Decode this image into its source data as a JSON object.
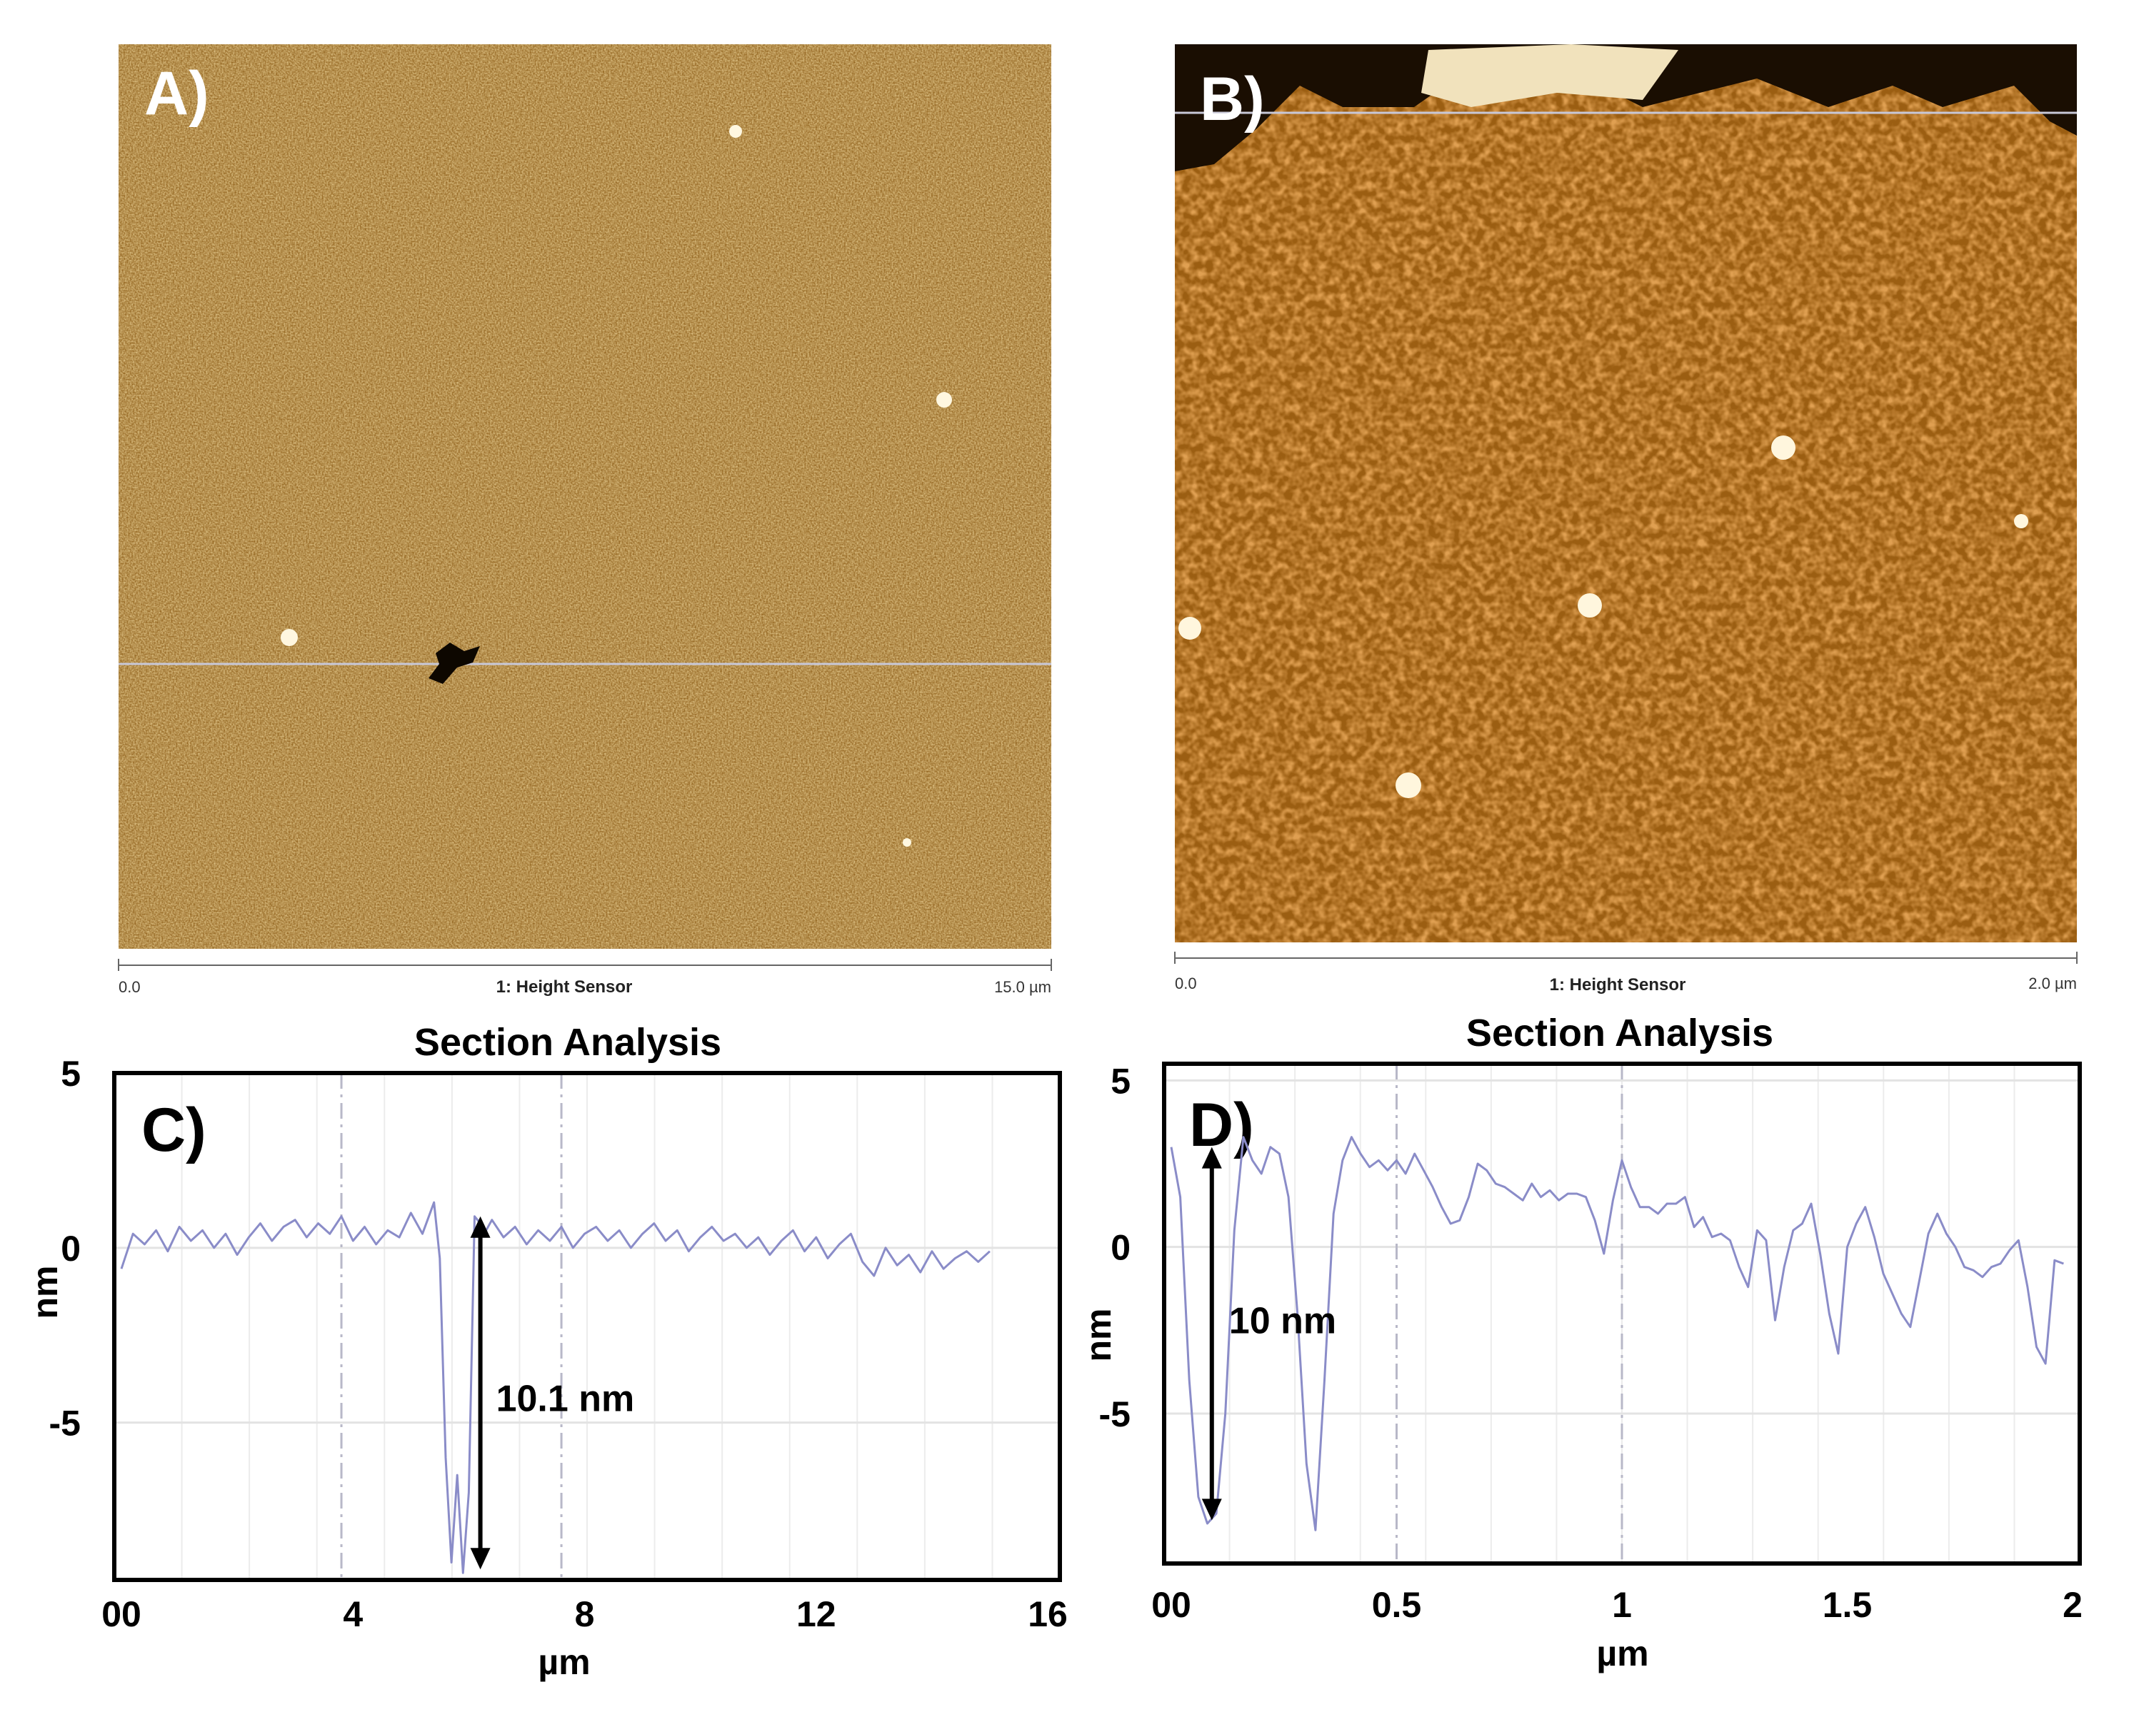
{
  "panels": {
    "A": {
      "label": "A)",
      "sensor_label": "1: Height Sensor",
      "scale_start": "0.0",
      "scale_end": "15.0 µm"
    },
    "B": {
      "label": "B)",
      "sensor_label": "1: Height Sensor",
      "scale_start": "0.0",
      "scale_end": "2.0 µm"
    }
  },
  "colors": {
    "afm_dark": "#5a3a08",
    "afm_mid": "#a8721e",
    "afm_light": "#f3dca2",
    "trace": "#8a8cc8",
    "arrow": "#000000",
    "grid": "#e0e0e0",
    "frame": "#000000"
  },
  "chart_data": [
    {
      "type": "line",
      "panel_label": "C)",
      "title": "Section Analysis",
      "xlabel": "µm",
      "ylabel": "nm",
      "xlim": [
        0,
        16
      ],
      "ylim": [
        -9.5,
        5
      ],
      "xticks": [
        0,
        4,
        8,
        12,
        16
      ],
      "xtick_labels": [
        "00",
        "4",
        "8",
        "12",
        "16"
      ],
      "yticks": [
        5,
        0,
        -5
      ],
      "ytick_labels": [
        "5",
        "0",
        "-5"
      ],
      "grid": true,
      "series": [
        {
          "x": [
            0,
            0.2,
            0.4,
            0.6,
            0.8,
            1.0,
            1.2,
            1.4,
            1.6,
            1.8,
            2.0,
            2.2,
            2.4,
            2.6,
            2.8,
            3.0,
            3.2,
            3.4,
            3.6,
            3.8,
            4.0,
            4.2,
            4.4,
            4.6,
            4.8,
            5.0,
            5.2,
            5.4,
            5.5,
            5.6,
            5.7,
            5.8,
            5.9,
            6.0,
            6.1,
            6.2,
            6.3,
            6.4,
            6.6,
            6.8,
            7.0,
            7.2,
            7.4,
            7.6,
            7.8,
            8.0,
            8.2,
            8.4,
            8.6,
            8.8,
            9.0,
            9.2,
            9.4,
            9.6,
            9.8,
            10.0,
            10.2,
            10.4,
            10.6,
            10.8,
            11.0,
            11.2,
            11.4,
            11.6,
            11.8,
            12.0,
            12.2,
            12.4,
            12.6,
            12.8,
            13.0,
            13.2,
            13.4,
            13.6,
            13.8,
            14.0,
            14.2,
            14.4,
            14.6,
            14.8,
            15.0
          ],
          "y": [
            -0.6,
            0.4,
            0.1,
            0.5,
            -0.1,
            0.6,
            0.2,
            0.5,
            0.0,
            0.4,
            -0.2,
            0.3,
            0.7,
            0.2,
            0.6,
            0.8,
            0.3,
            0.7,
            0.4,
            0.9,
            0.2,
            0.6,
            0.1,
            0.5,
            0.3,
            1.0,
            0.4,
            1.3,
            -0.3,
            -6.0,
            -9.0,
            -6.5,
            -9.3,
            -7.0,
            0.9,
            0.7,
            0.5,
            0.8,
            0.3,
            0.6,
            0.1,
            0.5,
            0.2,
            0.6,
            0.0,
            0.4,
            0.6,
            0.2,
            0.5,
            0.0,
            0.4,
            0.7,
            0.2,
            0.5,
            -0.1,
            0.3,
            0.6,
            0.2,
            0.4,
            0.0,
            0.3,
            -0.2,
            0.2,
            0.5,
            -0.1,
            0.3,
            -0.3,
            0.1,
            0.4,
            -0.4,
            -0.8,
            0.0,
            -0.5,
            -0.2,
            -0.7,
            -0.1,
            -0.6,
            -0.3,
            -0.1,
            -0.4,
            -0.1
          ]
        }
      ],
      "annotation": {
        "text": "10.1 nm",
        "arrow_x": 6.2,
        "arrow_from": 0.9,
        "arrow_to": -9.2
      }
    },
    {
      "type": "line",
      "panel_label": "D)",
      "title": "Section Analysis",
      "xlabel": "µm",
      "ylabel": "nm",
      "xlim": [
        0,
        2
      ],
      "ylim": [
        -9.5,
        5.5
      ],
      "xticks": [
        0,
        0.5,
        1,
        1.5,
        2
      ],
      "xtick_labels": [
        "00",
        "0.5",
        "1",
        "1.5",
        "2"
      ],
      "yticks": [
        5,
        0,
        -5
      ],
      "ytick_labels": [
        "5",
        "0",
        "-5"
      ],
      "grid": true,
      "series": [
        {
          "x": [
            0,
            0.02,
            0.04,
            0.06,
            0.08,
            0.1,
            0.12,
            0.14,
            0.16,
            0.18,
            0.2,
            0.22,
            0.24,
            0.26,
            0.28,
            0.3,
            0.32,
            0.34,
            0.36,
            0.38,
            0.4,
            0.42,
            0.44,
            0.46,
            0.48,
            0.5,
            0.52,
            0.54,
            0.56,
            0.58,
            0.6,
            0.62,
            0.64,
            0.66,
            0.68,
            0.7,
            0.72,
            0.74,
            0.76,
            0.78,
            0.8,
            0.82,
            0.84,
            0.86,
            0.88,
            0.9,
            0.92,
            0.94,
            0.96,
            0.98,
            1.0,
            1.02,
            1.04,
            1.06,
            1.08,
            1.1,
            1.12,
            1.14,
            1.16,
            1.18,
            1.2,
            1.22,
            1.24,
            1.26,
            1.28,
            1.3,
            1.32,
            1.34,
            1.36,
            1.38,
            1.4,
            1.42,
            1.44,
            1.46,
            1.48,
            1.5,
            1.52,
            1.54,
            1.56,
            1.58,
            1.6,
            1.62,
            1.64,
            1.66,
            1.68,
            1.7,
            1.72,
            1.74,
            1.76,
            1.78,
            1.8,
            1.82,
            1.84,
            1.86,
            1.88,
            1.9,
            1.92,
            1.94,
            1.96,
            1.98
          ],
          "y": [
            3.0,
            1.5,
            -4.0,
            -7.5,
            -8.3,
            -8.0,
            -5.0,
            0.5,
            3.3,
            2.6,
            2.2,
            3.0,
            2.8,
            1.5,
            -2.0,
            -6.5,
            -8.5,
            -4.0,
            1.0,
            2.6,
            3.3,
            2.8,
            2.4,
            2.6,
            2.3,
            2.6,
            2.2,
            2.8,
            2.3,
            1.8,
            1.2,
            0.7,
            0.8,
            1.5,
            2.5,
            2.3,
            1.9,
            1.8,
            1.6,
            1.4,
            1.9,
            1.5,
            1.7,
            1.4,
            1.6,
            1.6,
            1.5,
            0.8,
            -0.2,
            1.4,
            2.6,
            1.8,
            1.2,
            1.2,
            1.0,
            1.3,
            1.3,
            1.5,
            0.6,
            0.9,
            0.3,
            0.4,
            0.2,
            -0.6,
            -1.2,
            0.5,
            0.2,
            -2.2,
            -0.6,
            0.5,
            0.7,
            1.3,
            -0.2,
            -2.0,
            -3.2,
            0.0,
            0.7,
            1.2,
            0.3,
            -0.8,
            -1.4,
            -2.0,
            -2.4,
            -1.0,
            0.4,
            1.0,
            0.4,
            0.0,
            -0.6,
            -0.7,
            -0.9,
            -0.6,
            -0.5,
            -0.1,
            0.2,
            -1.2,
            -3.0,
            -3.5,
            -0.4,
            -0.5
          ]
        }
      ],
      "annotation": {
        "text": "10 nm",
        "arrow_x": 0.09,
        "arrow_from": 3.0,
        "arrow_to": -8.2
      }
    }
  ]
}
